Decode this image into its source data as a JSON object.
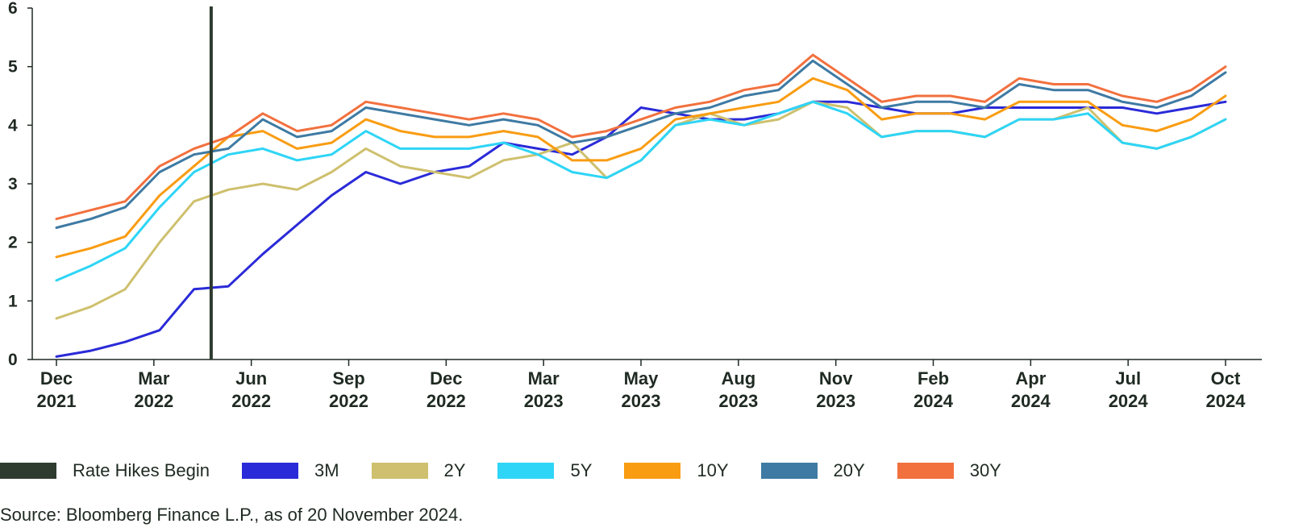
{
  "chart_data": {
    "type": "line",
    "title": "",
    "xlabel": "",
    "ylabel": "",
    "ylim": [
      0,
      6
    ],
    "yticks": [
      "0",
      "1",
      "2",
      "3",
      "4",
      "5",
      "6"
    ],
    "x_axis_ticks": [
      {
        "month": "Dec",
        "year": "2021"
      },
      {
        "month": "Mar",
        "year": "2022"
      },
      {
        "month": "Jun",
        "year": "2022"
      },
      {
        "month": "Sep",
        "year": "2022"
      },
      {
        "month": "Dec",
        "year": "2022"
      },
      {
        "month": "Mar",
        "year": "2023"
      },
      {
        "month": "May",
        "year": "2023"
      },
      {
        "month": "Aug",
        "year": "2023"
      },
      {
        "month": "Nov",
        "year": "2023"
      },
      {
        "month": "Feb",
        "year": "2024"
      },
      {
        "month": "Apr",
        "year": "2024"
      },
      {
        "month": "Jul",
        "year": "2024"
      },
      {
        "month": "Oct",
        "year": "2024"
      }
    ],
    "x_date_range": [
      "2021-12",
      "2024-10"
    ],
    "x": [
      "Dec 2021",
      "Jan 2022",
      "Feb 2022",
      "Mar 2022",
      "Apr 2022",
      "May 2022",
      "Jun 2022",
      "Jul 2022",
      "Aug 2022",
      "Sep 2022",
      "Oct 2022",
      "Nov 2022",
      "Dec 2022",
      "Jan 2023",
      "Feb 2023",
      "Mar 2023",
      "Apr 2023",
      "May 2023",
      "Jun 2023",
      "Jul 2023",
      "Aug 2023",
      "Sep 2023",
      "Oct 2023",
      "Nov 2023",
      "Dec 2023",
      "Jan 2024",
      "Feb 2024",
      "Mar 2024",
      "Apr 2024",
      "May 2024",
      "Jun 2024",
      "Jul 2024",
      "Aug 2024",
      "Sep 2024",
      "Oct 2024"
    ],
    "x_index": [
      0,
      1,
      2,
      3,
      4,
      5,
      6,
      7,
      8,
      9,
      10,
      11,
      12,
      13,
      14,
      15,
      16,
      17,
      18,
      19,
      20,
      21,
      22,
      23,
      24,
      25,
      26,
      27,
      28,
      29,
      30,
      31,
      32,
      33,
      34
    ],
    "xlim_index": [
      0,
      34
    ],
    "rate_hikes_begin_index": 4.5,
    "series": [
      {
        "name": "3M",
        "color": "#2a2ad8",
        "values": [
          0.05,
          0.15,
          0.3,
          0.5,
          1.2,
          1.25,
          1.8,
          2.3,
          2.8,
          3.2,
          3.0,
          3.2,
          3.3,
          3.7,
          3.6,
          3.5,
          3.8,
          4.3,
          4.2,
          4.1,
          4.1,
          4.2,
          4.4,
          4.4,
          4.3,
          4.2,
          4.2,
          4.3,
          4.3,
          4.3,
          4.3,
          4.3,
          4.2,
          4.3,
          4.4
        ]
      },
      {
        "name": "2Y",
        "color": "#cec06e",
        "values": [
          0.7,
          0.9,
          1.2,
          2.0,
          2.7,
          2.9,
          3.0,
          2.9,
          3.2,
          3.6,
          3.3,
          3.2,
          3.1,
          3.4,
          3.5,
          3.7,
          3.1,
          3.4,
          4.0,
          4.2,
          4.0,
          4.1,
          4.4,
          4.3,
          3.8,
          3.9,
          3.9,
          3.8,
          4.1,
          4.1,
          4.3,
          3.7,
          3.6,
          3.8,
          4.1
        ]
      },
      {
        "name": "5Y",
        "color": "#2ed5f6",
        "values": [
          1.35,
          1.6,
          1.9,
          2.6,
          3.2,
          3.5,
          3.6,
          3.4,
          3.5,
          3.9,
          3.6,
          3.6,
          3.6,
          3.7,
          3.5,
          3.2,
          3.1,
          3.4,
          4.0,
          4.1,
          4.0,
          4.2,
          4.4,
          4.2,
          3.8,
          3.9,
          3.9,
          3.8,
          4.1,
          4.1,
          4.2,
          3.7,
          3.6,
          3.8,
          4.1
        ]
      },
      {
        "name": "10Y",
        "color": "#f99c12",
        "values": [
          1.75,
          1.9,
          2.1,
          2.8,
          3.3,
          3.8,
          3.9,
          3.6,
          3.7,
          4.1,
          3.9,
          3.8,
          3.8,
          3.9,
          3.8,
          3.4,
          3.4,
          3.6,
          4.1,
          4.2,
          4.3,
          4.4,
          4.8,
          4.6,
          4.1,
          4.2,
          4.2,
          4.1,
          4.4,
          4.4,
          4.4,
          4.0,
          3.9,
          4.1,
          4.5
        ]
      },
      {
        "name": "20Y",
        "color": "#3e7aa3",
        "values": [
          2.25,
          2.4,
          2.6,
          3.2,
          3.5,
          3.6,
          4.1,
          3.8,
          3.9,
          4.3,
          4.2,
          4.1,
          4.0,
          4.1,
          4.0,
          3.7,
          3.8,
          4.0,
          4.2,
          4.3,
          4.5,
          4.6,
          5.1,
          4.7,
          4.3,
          4.4,
          4.4,
          4.3,
          4.7,
          4.6,
          4.6,
          4.4,
          4.3,
          4.5,
          4.9
        ]
      },
      {
        "name": "30Y",
        "color": "#f2703e",
        "values": [
          2.4,
          2.55,
          2.7,
          3.3,
          3.6,
          3.8,
          4.2,
          3.9,
          4.0,
          4.4,
          4.3,
          4.2,
          4.1,
          4.2,
          4.1,
          3.8,
          3.9,
          4.1,
          4.3,
          4.4,
          4.6,
          4.7,
          5.2,
          4.8,
          4.4,
          4.5,
          4.5,
          4.4,
          4.8,
          4.7,
          4.7,
          4.5,
          4.4,
          4.6,
          5.0
        ]
      }
    ]
  },
  "legend": {
    "marker": {
      "label": "Rate Hikes Begin",
      "color": "#2e3b2f"
    },
    "series": [
      {
        "label": "3M",
        "color": "#2a2ad8"
      },
      {
        "label": "2Y",
        "color": "#cec06e"
      },
      {
        "label": "5Y",
        "color": "#2ed5f6"
      },
      {
        "label": "10Y",
        "color": "#f99c12"
      },
      {
        "label": "20Y",
        "color": "#3e7aa3"
      },
      {
        "label": "30Y",
        "color": "#f2703e"
      }
    ]
  },
  "source": "Source: Bloomberg Finance L.P., as of 20 November 2024."
}
